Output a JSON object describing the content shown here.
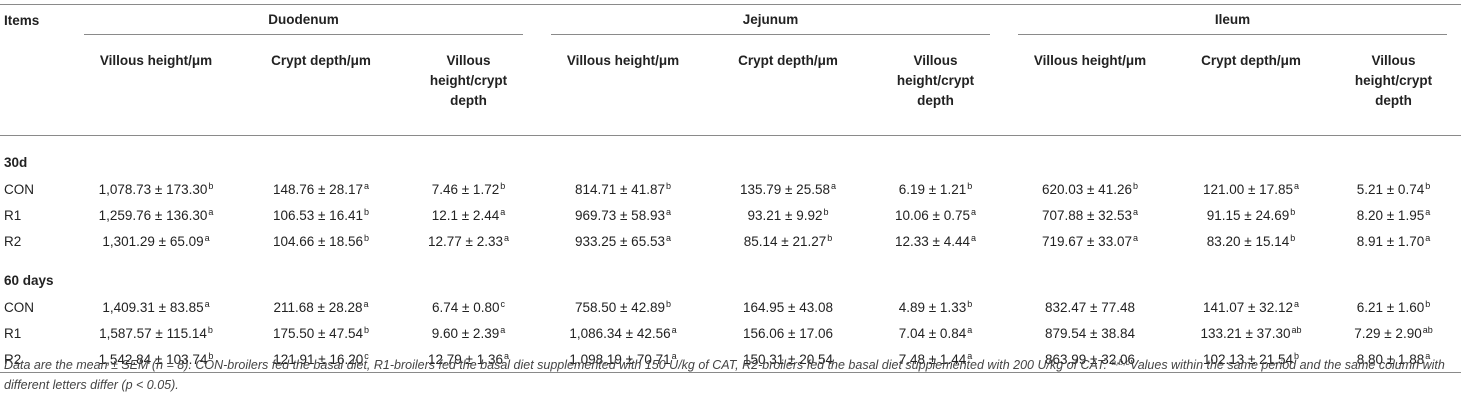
{
  "table": {
    "items_label": "Items",
    "groups": [
      "Duodenum",
      "Jejunum",
      "Ileum"
    ],
    "columns": [
      "Villous height/μm",
      "Crypt depth/μm",
      "Villous height/crypt depth"
    ],
    "sections": [
      {
        "label": "30d",
        "rows": [
          {
            "name": "CON",
            "cells": [
              {
                "v": "1,078.73 ± 173.30",
                "s": "b"
              },
              {
                "v": "148.76 ± 28.17",
                "s": "a"
              },
              {
                "v": "7.46 ± 1.72",
                "s": "b"
              },
              {
                "v": "814.71 ± 41.87",
                "s": "b"
              },
              {
                "v": "135.79 ± 25.58",
                "s": "a"
              },
              {
                "v": "6.19 ± 1.21",
                "s": "b"
              },
              {
                "v": "620.03 ± 41.26",
                "s": "b"
              },
              {
                "v": "121.00 ± 17.85",
                "s": "a"
              },
              {
                "v": "5.21 ± 0.74",
                "s": "b"
              }
            ]
          },
          {
            "name": "R1",
            "cells": [
              {
                "v": "1,259.76 ± 136.30",
                "s": "a"
              },
              {
                "v": "106.53 ± 16.41",
                "s": "b"
              },
              {
                "v": "12.1 ± 2.44",
                "s": "a"
              },
              {
                "v": "969.73 ± 58.93",
                "s": "a"
              },
              {
                "v": "93.21 ± 9.92",
                "s": "b"
              },
              {
                "v": "10.06 ± 0.75",
                "s": "a"
              },
              {
                "v": "707.88 ± 32.53",
                "s": "a"
              },
              {
                "v": "91.15 ± 24.69",
                "s": "b"
              },
              {
                "v": "8.20 ± 1.95",
                "s": "a"
              }
            ]
          },
          {
            "name": "R2",
            "cells": [
              {
                "v": "1,301.29 ± 65.09",
                "s": "a"
              },
              {
                "v": "104.66 ± 18.56",
                "s": "b"
              },
              {
                "v": "12.77 ± 2.33",
                "s": "a"
              },
              {
                "v": "933.25 ± 65.53",
                "s": "a"
              },
              {
                "v": "85.14 ± 21.27",
                "s": "b"
              },
              {
                "v": "12.33 ± 4.44",
                "s": "a"
              },
              {
                "v": "719.67 ± 33.07",
                "s": "a"
              },
              {
                "v": "83.20 ± 15.14",
                "s": "b"
              },
              {
                "v": "8.91 ± 1.70",
                "s": "a"
              }
            ]
          }
        ]
      },
      {
        "label": "60 days",
        "rows": [
          {
            "name": "CON",
            "cells": [
              {
                "v": "1,409.31 ± 83.85",
                "s": "a"
              },
              {
                "v": "211.68 ± 28.28",
                "s": "a"
              },
              {
                "v": "6.74 ± 0.80",
                "s": "c"
              },
              {
                "v": "758.50 ± 42.89",
                "s": "b"
              },
              {
                "v": "164.95 ± 43.08",
                "s": ""
              },
              {
                "v": "4.89 ± 1.33",
                "s": "b"
              },
              {
                "v": "832.47 ± 77.48",
                "s": ""
              },
              {
                "v": "141.07 ± 32.12",
                "s": "a"
              },
              {
                "v": "6.21 ± 1.60",
                "s": "b"
              }
            ]
          },
          {
            "name": "R1",
            "cells": [
              {
                "v": "1,587.57 ± 115.14",
                "s": "b"
              },
              {
                "v": "175.50 ± 47.54",
                "s": "b"
              },
              {
                "v": "9.60 ± 2.39",
                "s": "a"
              },
              {
                "v": "1,086.34 ± 42.56",
                "s": "a"
              },
              {
                "v": "156.06 ± 17.06",
                "s": ""
              },
              {
                "v": "7.04 ± 0.84",
                "s": "a"
              },
              {
                "v": "879.54 ± 38.84",
                "s": ""
              },
              {
                "v": "133.21 ± 37.30",
                "s": "ab"
              },
              {
                "v": "7.29 ± 2.90",
                "s": "ab"
              }
            ]
          },
          {
            "name": "R2",
            "cells": [
              {
                "v": "1,542.84 ± 103.74",
                "s": "b"
              },
              {
                "v": "121.91 ± 16.20",
                "s": "c"
              },
              {
                "v": "12.79 ± 1.36",
                "s": "a"
              },
              {
                "v": "1,098.19 ± 70.71",
                "s": "a"
              },
              {
                "v": "150.31 ± 20.54",
                "s": ""
              },
              {
                "v": "7.48 ± 1.44",
                "s": "a"
              },
              {
                "v": "863.99 ± 32.06",
                "s": ""
              },
              {
                "v": "102.13 ± 21.54",
                "s": "b"
              },
              {
                "v": "8.80 ± 1.88",
                "s": "a"
              }
            ]
          }
        ]
      }
    ]
  },
  "footnote": {
    "text_before": "Data are the mean ± SEM (n = 8). CON-broilers fed the basal diet, R1-broilers fed the basal diet supplemented with 150 U/kg of CAT, R2-broilers fed the basal diet supplemented with 200 U/kg of CAT. ",
    "superscript": "a,b,c",
    "text_after": "Values within the same period and the same column with different letters differ (p < 0.05)."
  }
}
